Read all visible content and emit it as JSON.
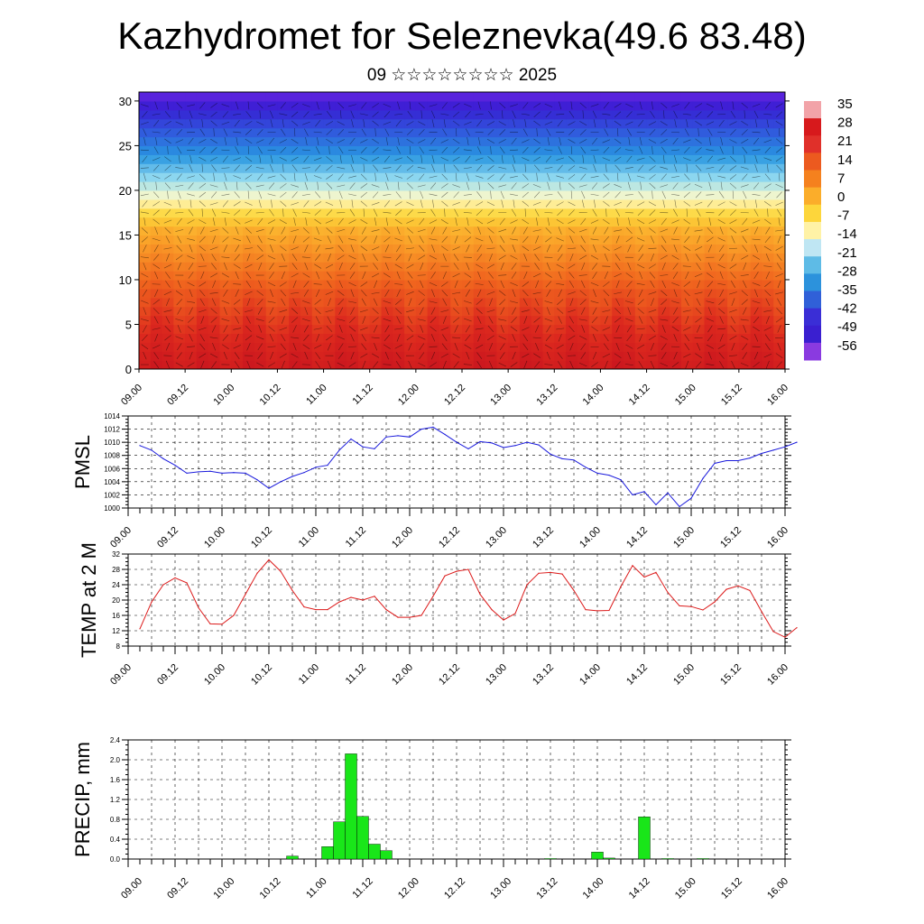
{
  "header": {
    "title": "Kazhydromet for Seleznevka(49.6 83.48)",
    "subtitle": "09 ☆☆☆☆☆☆☆☆ 2025"
  },
  "colors": {
    "pmsl_line": "#1a1adc",
    "temp_line": "#dc1a1a",
    "precip_bar": "#19e619",
    "precip_edge": "#000000"
  },
  "x_ticks": [
    "09.00",
    "09.12",
    "10.00",
    "10.12",
    "11.00",
    "11.12",
    "12.00",
    "12.12",
    "13.00",
    "13.12",
    "14.00",
    "14.12",
    "15.00",
    "15.12",
    "16.00"
  ],
  "chart_data": [
    {
      "id": "cross_section",
      "type": "heatmap",
      "x_range": [
        0,
        14
      ],
      "ylim": [
        0,
        31
      ],
      "yticks": [
        0,
        5,
        10,
        15,
        20,
        25,
        30
      ],
      "colorbar_labels": [
        "35",
        "28",
        "21",
        "14",
        "7",
        "0",
        "-7",
        "-14",
        "-21",
        "-28",
        "-35",
        "-42",
        "-49",
        "-56"
      ],
      "colorbar_colors": [
        "#f2a3a8",
        "#d7191c",
        "#e0302a",
        "#ec5a1f",
        "#f5811e",
        "#fbad2a",
        "#fdd63b",
        "#fff2a6",
        "#bfe6f3",
        "#5ebbe6",
        "#2c92dc",
        "#3060d8",
        "#3a2ed6",
        "#3a1fd0",
        "#8a3ae0"
      ]
    },
    {
      "id": "pmsl",
      "type": "line",
      "ylabel": "PMSL",
      "ylim": [
        1000,
        1014
      ],
      "yticks": [
        1000,
        1002,
        1004,
        1006,
        1008,
        1010,
        1012,
        1014
      ],
      "x_range": [
        0,
        14
      ],
      "x_start": 0.25,
      "x_step": 0.25,
      "values": [
        1009.5,
        1008.8,
        1007.5,
        1006.5,
        1005.3,
        1005.5,
        1005.6,
        1005.3,
        1005.4,
        1005.3,
        1004.3,
        1003.0,
        1004.0,
        1004.8,
        1005.4,
        1006.2,
        1006.5,
        1008.8,
        1010.5,
        1009.3,
        1009.0,
        1010.8,
        1011.0,
        1010.8,
        1012.0,
        1012.3,
        1011.2,
        1010.0,
        1009.0,
        1010.1,
        1009.9,
        1009.2,
        1009.5,
        1010.0,
        1009.6,
        1008.2,
        1007.5,
        1007.3,
        1006.2,
        1005.3,
        1005.0,
        1004.3,
        1002.0,
        1002.5,
        1000.5,
        1002.3,
        1000.2,
        1001.5,
        1004.5,
        1006.8,
        1007.2,
        1007.2,
        1007.6,
        1008.3,
        1008.8,
        1009.3,
        1010.0
      ]
    },
    {
      "id": "temp",
      "type": "line",
      "ylabel": "TEMP at 2 M",
      "ylim": [
        8,
        32
      ],
      "yticks": [
        8,
        12,
        16,
        20,
        24,
        28,
        32
      ],
      "x_range": [
        0,
        14
      ],
      "x_start": 0.25,
      "x_step": 0.25,
      "values": [
        12.5,
        19.5,
        24.0,
        25.8,
        24.5,
        18.0,
        13.8,
        13.7,
        16.0,
        21.5,
        27.0,
        30.5,
        27.5,
        22.5,
        18.2,
        17.5,
        17.5,
        19.5,
        20.7,
        20.0,
        21.0,
        17.5,
        15.5,
        15.5,
        16.0,
        21.0,
        26.3,
        27.5,
        28.0,
        21.5,
        17.5,
        14.8,
        16.5,
        24.0,
        27.0,
        27.2,
        26.8,
        22.5,
        17.5,
        17.2,
        17.3,
        23.5,
        29.0,
        26.0,
        27.2,
        22.0,
        18.5,
        18.3,
        17.4,
        19.5,
        22.8,
        23.7,
        22.5,
        17.0,
        11.8,
        10.3,
        12.8
      ]
    },
    {
      "id": "precip",
      "type": "bar",
      "ylabel": "PRECIP, mm",
      "ylim": [
        0,
        2.4
      ],
      "yticks": [
        "0.0",
        "0.4",
        "0.8",
        "1.2",
        "1.6",
        "2.0",
        "2.4"
      ],
      "x_range": [
        0,
        14
      ],
      "bar_width": 0.25,
      "bars": [
        {
          "x": 3.25,
          "value": 0.06
        },
        {
          "x": 4.0,
          "value": 0.25
        },
        {
          "x": 4.25,
          "value": 0.75
        },
        {
          "x": 4.5,
          "value": 2.12
        },
        {
          "x": 4.75,
          "value": 0.86
        },
        {
          "x": 5.0,
          "value": 0.3
        },
        {
          "x": 5.25,
          "value": 0.17
        },
        {
          "x": 8.75,
          "value": 0.01
        },
        {
          "x": 9.75,
          "value": 0.14
        },
        {
          "x": 10.0,
          "value": 0.02
        },
        {
          "x": 10.75,
          "value": 0.85
        },
        {
          "x": 11.25,
          "value": 0.01
        },
        {
          "x": 12.0,
          "value": 0.01
        }
      ]
    }
  ]
}
